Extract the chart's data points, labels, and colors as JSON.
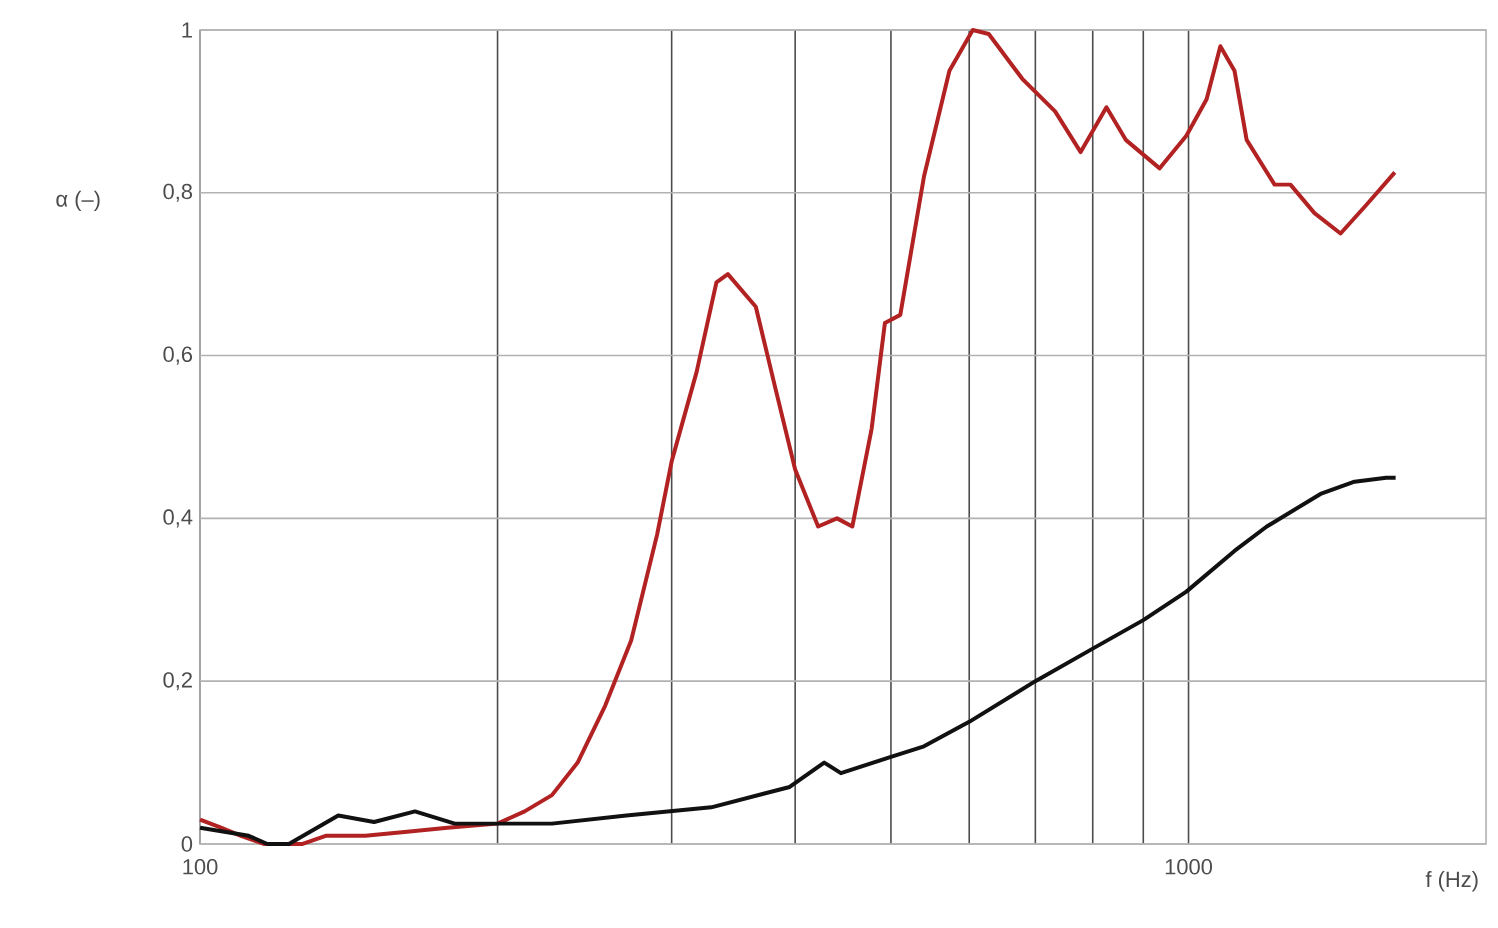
{
  "chart_data": {
    "type": "line",
    "xlabel": "f (Hz)",
    "ylabel": "α (–)",
    "log": "x",
    "grid": true,
    "line_style": "solid",
    "marker": "none",
    "xlim": [
      100,
      2000
    ],
    "ylim": [
      0,
      1
    ],
    "xticks": [
      100,
      {
        "value": 200,
        "label": null
      },
      {
        "value": 300,
        "label": null
      },
      {
        "value": 400,
        "label": null
      },
      {
        "value": 500,
        "label": null
      },
      {
        "value": 600,
        "label": null
      },
      {
        "value": 700,
        "label": null
      },
      {
        "value": 800,
        "label": null
      },
      {
        "value": 900,
        "label": null
      },
      1000
    ],
    "yticks": [
      0,
      {
        "value": 0.2,
        "label": "0,2"
      },
      {
        "value": 0.4,
        "label": "0,4"
      },
      {
        "value": 0.6,
        "label": "0,6"
      },
      {
        "value": 0.8,
        "label": "0,8"
      },
      1
    ],
    "series": [
      {
        "color": "#b22222",
        "x": [
          100,
          105,
          110,
          116,
          121,
          127,
          134,
          147,
          162,
          178,
          200,
          213,
          227,
          241,
          257,
          273,
          290,
          300,
          318,
          333,
          342,
          365,
          382,
          400,
          422,
          441,
          457,
          478,
          493,
          511,
          540,
          573,
          605,
          628,
          679,
          733,
          778,
          826,
          864,
          935,
          995,
          1043,
          1077,
          1113,
          1145,
          1222,
          1268,
          1341,
          1425,
          1513,
          1617
        ],
        "values": [
          0.03,
          0.02,
          0.01,
          0,
          0,
          0,
          0.01,
          0.01,
          0.015,
          0.02,
          0.025,
          0.04,
          0.06,
          0.1,
          0.17,
          0.25,
          0.38,
          0.47,
          0.58,
          0.69,
          0.7,
          0.66,
          0.56,
          0.46,
          0.39,
          0.4,
          0.39,
          0.51,
          0.64,
          0.65,
          0.82,
          0.95,
          1,
          0.995,
          0.94,
          0.9,
          0.85,
          0.905,
          0.865,
          0.83,
          0.87,
          0.915,
          0.98,
          0.95,
          0.865,
          0.81,
          0.81,
          0.775,
          0.75,
          0.785,
          0.825
        ]
      },
      {
        "color": "#111111",
        "x": [
          100,
          112,
          117,
          123,
          138,
          150,
          165,
          181,
          200,
          227,
          270,
          329,
          395,
          428,
          445,
          500,
          540,
          600,
          700,
          800,
          900,
          995,
          1113,
          1200,
          1360,
          1472,
          1585,
          1620
        ],
        "values": [
          0.02,
          0.01,
          0,
          0,
          0.035,
          0.027,
          0.04,
          0.025,
          0.025,
          0.025,
          0.035,
          0.045,
          0.07,
          0.1,
          0.087,
          0.107,
          0.12,
          0.15,
          0.2,
          0.24,
          0.275,
          0.31,
          0.36,
          0.39,
          0.43,
          0.445,
          0.45,
          0.45
        ]
      }
    ]
  }
}
